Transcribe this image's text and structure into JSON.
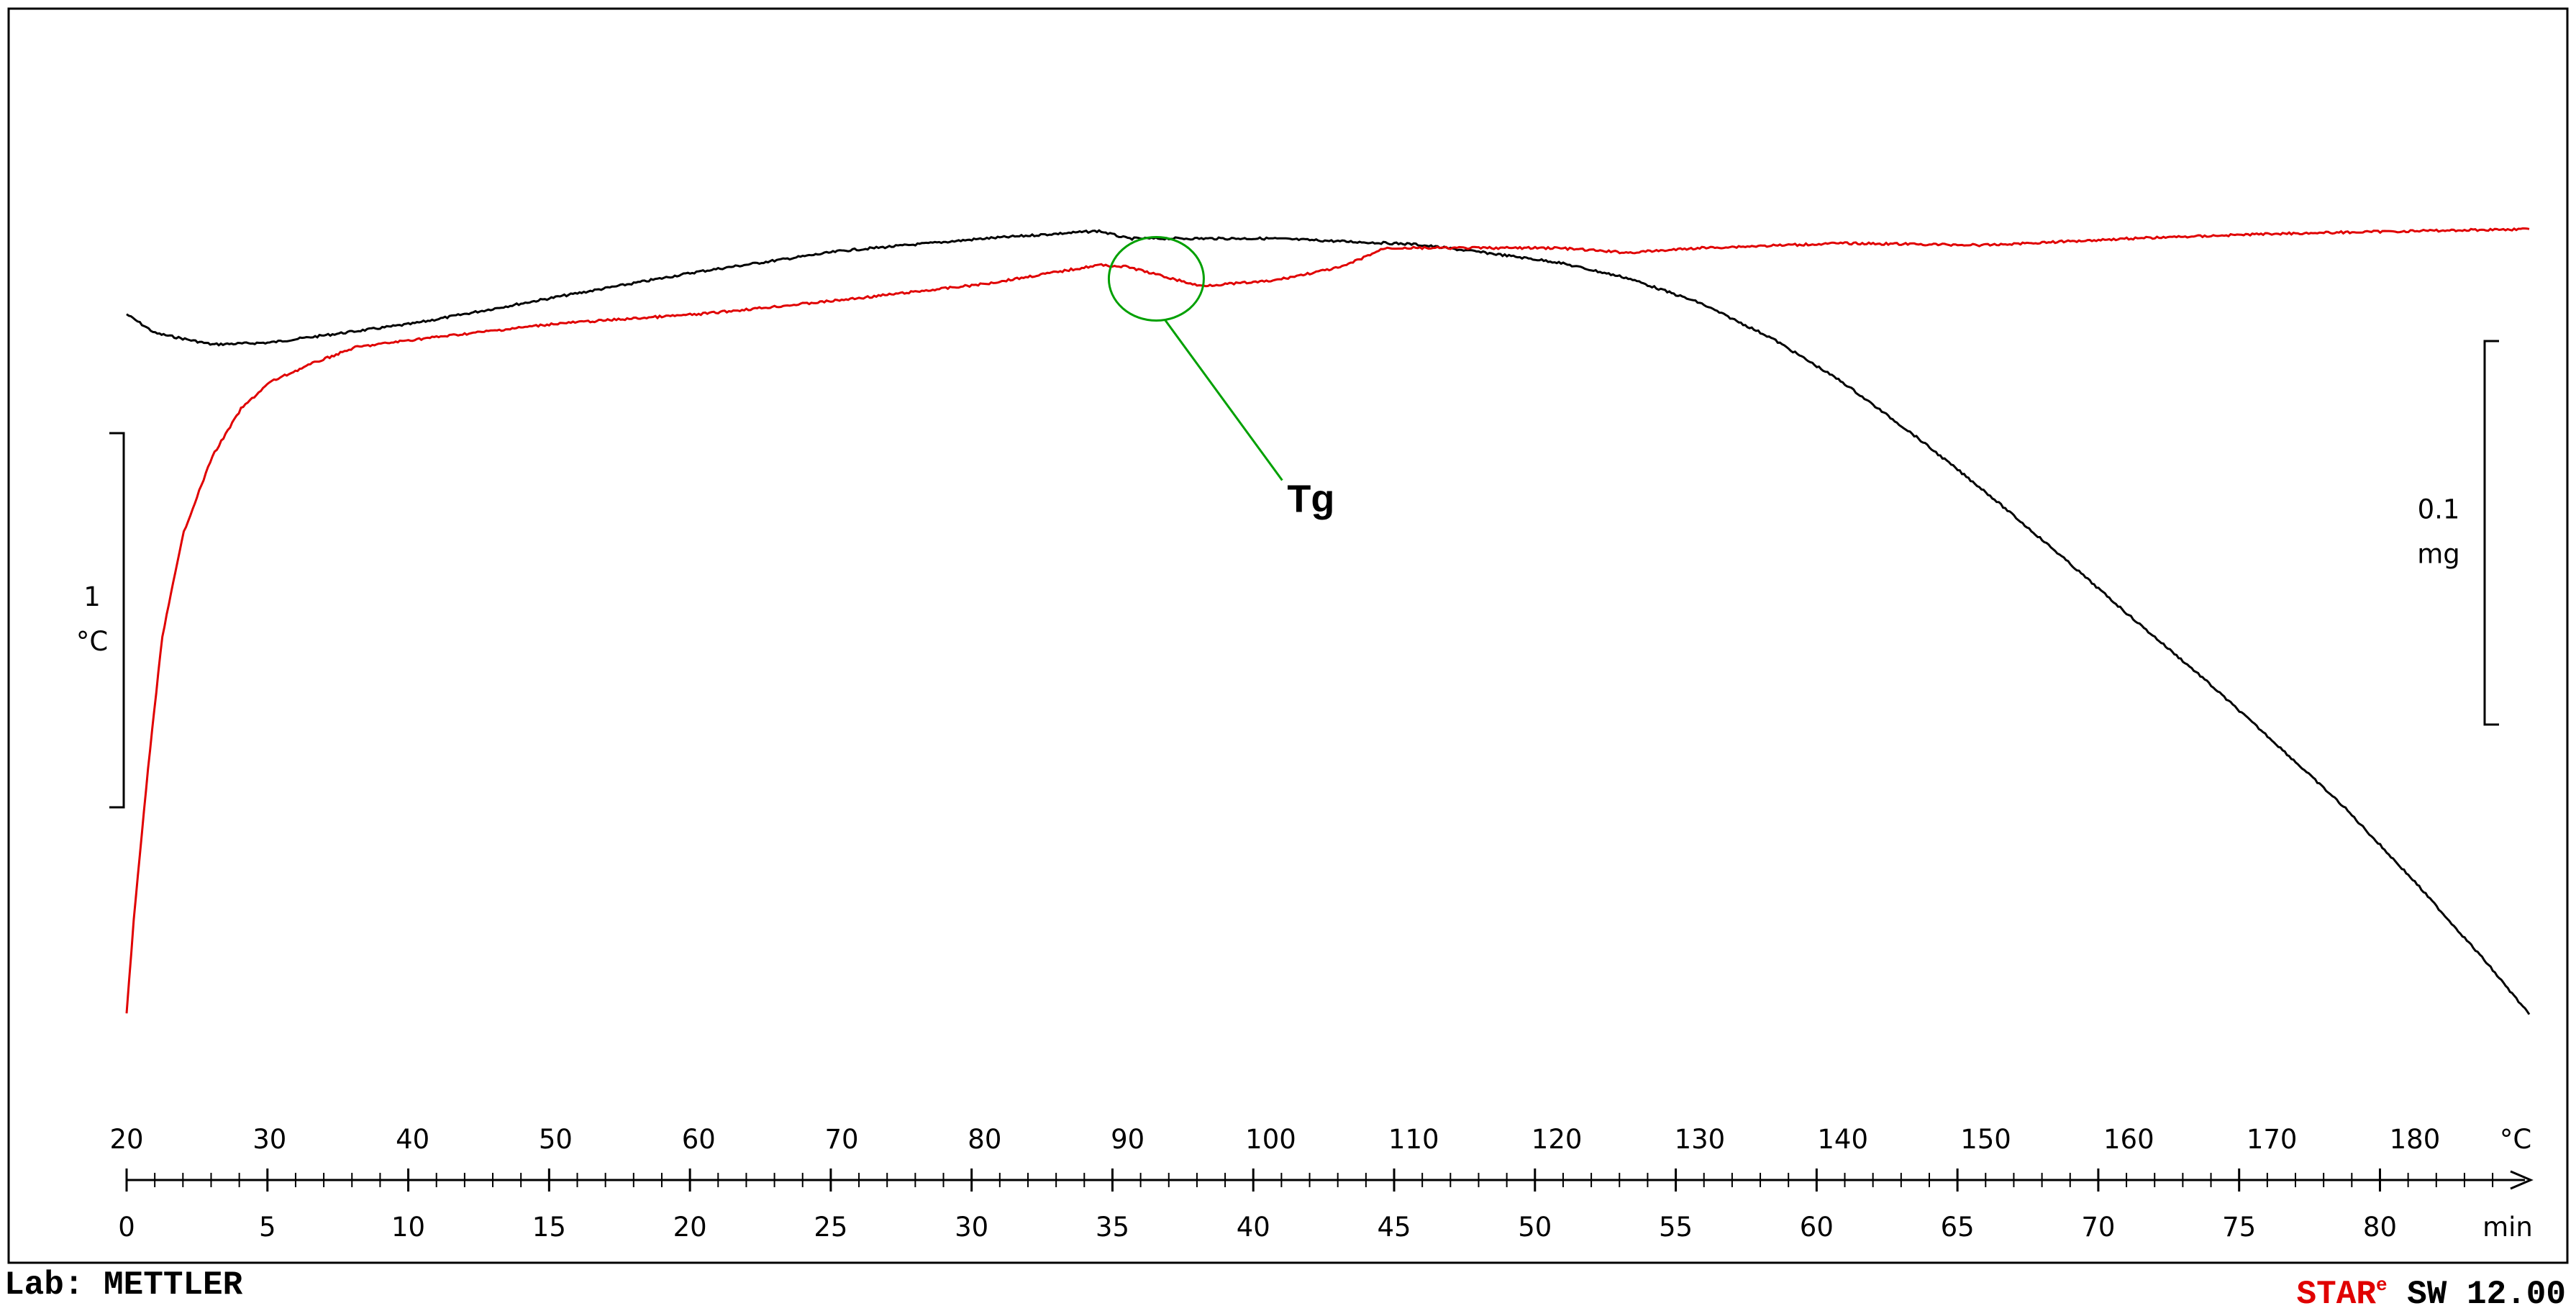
{
  "chart_data": {
    "type": "line",
    "title": "",
    "x_axis_primary": {
      "label": "°C",
      "ticks": [
        "20",
        "30",
        "40",
        "50",
        "60",
        "70",
        "80",
        "90",
        "100",
        "110",
        "120",
        "130",
        "140",
        "150",
        "160",
        "170",
        "180"
      ],
      "range": [
        20,
        188
      ]
    },
    "x_axis_secondary": {
      "label": "min",
      "ticks": [
        "0",
        "5",
        "10",
        "15",
        "20",
        "25",
        "30",
        "35",
        "40",
        "45",
        "50",
        "55",
        "60",
        "65",
        "70",
        "75",
        "80"
      ],
      "range": [
        0,
        85.3
      ]
    },
    "series": [
      {
        "color": "#000000",
        "points": [
          [
            20,
            0.82
          ],
          [
            22,
            0.8
          ],
          [
            26,
            0.788
          ],
          [
            30,
            0.79
          ],
          [
            40,
            0.81
          ],
          [
            50,
            0.838
          ],
          [
            60,
            0.865
          ],
          [
            70,
            0.887
          ],
          [
            80,
            0.9
          ],
          [
            88,
            0.908
          ],
          [
            90,
            0.9
          ],
          [
            100,
            0.9
          ],
          [
            110,
            0.894
          ],
          [
            115,
            0.885
          ],
          [
            120,
            0.875
          ],
          [
            125,
            0.858
          ],
          [
            130,
            0.832
          ],
          [
            135,
            0.795
          ],
          [
            140,
            0.748
          ],
          [
            145,
            0.692
          ],
          [
            150,
            0.632
          ],
          [
            155,
            0.568
          ],
          [
            160,
            0.502
          ],
          [
            165,
            0.438
          ],
          [
            170,
            0.37
          ],
          [
            175,
            0.3
          ],
          [
            180,
            0.22
          ],
          [
            185,
            0.135
          ],
          [
            188,
            0.08
          ]
        ]
      },
      {
        "color": "#e00000",
        "points": [
          [
            20,
            0.08
          ],
          [
            20.5,
            0.18
          ],
          [
            21.5,
            0.34
          ],
          [
            22.5,
            0.48
          ],
          [
            24,
            0.59
          ],
          [
            26,
            0.67
          ],
          [
            28,
            0.72
          ],
          [
            30,
            0.748
          ],
          [
            33,
            0.768
          ],
          [
            36,
            0.785
          ],
          [
            40,
            0.793
          ],
          [
            50,
            0.81
          ],
          [
            60,
            0.82
          ],
          [
            70,
            0.835
          ],
          [
            80,
            0.852
          ],
          [
            88,
            0.872
          ],
          [
            90,
            0.87
          ],
          [
            93,
            0.858
          ],
          [
            95,
            0.85
          ],
          [
            100,
            0.855
          ],
          [
            105,
            0.87
          ],
          [
            108,
            0.89
          ],
          [
            115,
            0.89
          ],
          [
            120,
            0.89
          ],
          [
            125,
            0.885
          ],
          [
            130,
            0.89
          ],
          [
            140,
            0.895
          ],
          [
            150,
            0.893
          ],
          [
            160,
            0.9
          ],
          [
            170,
            0.905
          ],
          [
            180,
            0.908
          ],
          [
            188,
            0.91
          ]
        ]
      }
    ],
    "scale_bars": [
      {
        "value": "1",
        "unit": "°C",
        "side": "left"
      },
      {
        "value": "0.1",
        "unit": "mg",
        "side": "right"
      }
    ],
    "annotations": [
      {
        "text": "Tg",
        "x": 92,
        "target_series": "#e00000"
      }
    ],
    "grid": false,
    "legend": "none"
  },
  "footer": {
    "lab": "Lab: METTLER",
    "brand": "STAR",
    "brand_sup": "e",
    "version": " SW 12.00"
  },
  "colors": {
    "frame": "#000000",
    "annotation": "#00a000",
    "tga_curve": "#000000",
    "temp_curve": "#e00000"
  }
}
